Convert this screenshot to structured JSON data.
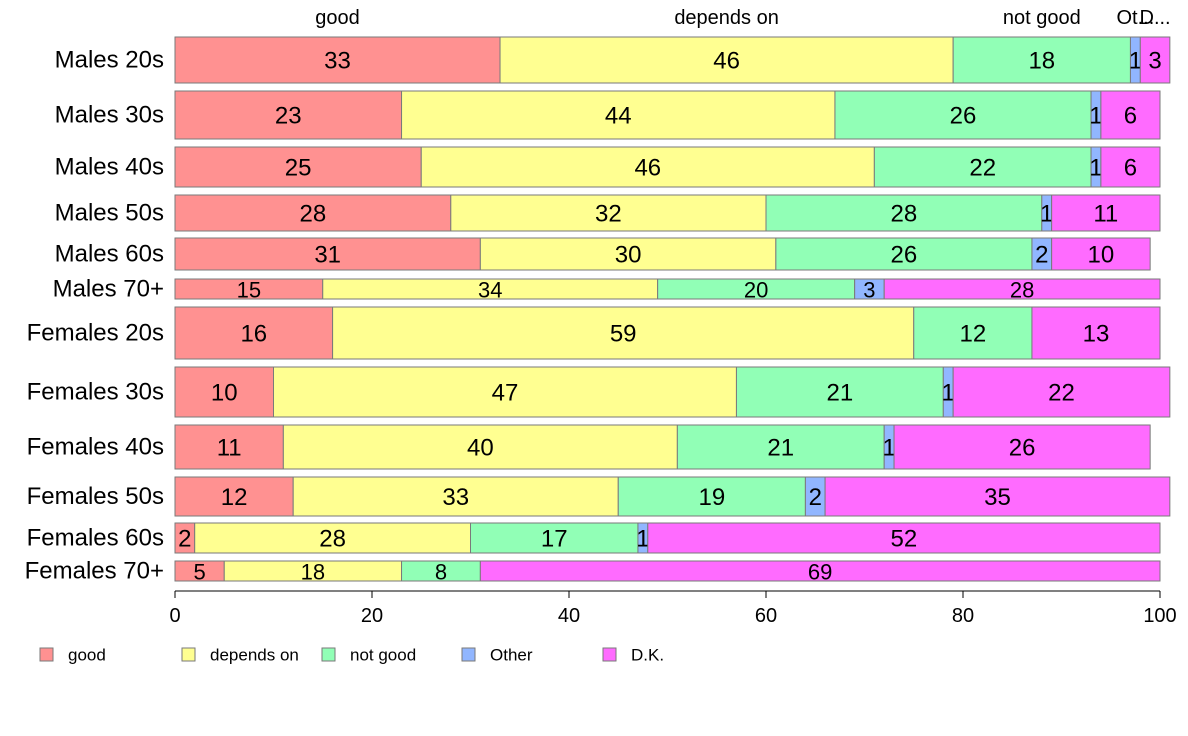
{
  "chart_data": {
    "type": "bar",
    "orientation": "horizontal",
    "stacked": true,
    "categories": [
      "Males 20s",
      "Males 30s",
      "Males 40s",
      "Males 50s",
      "Males 60s",
      "Males 70+",
      "Females 20s",
      "Females 30s",
      "Females 40s",
      "Females 50s",
      "Females 60s",
      "Females 70+"
    ],
    "series": [
      {
        "name": "good",
        "color": "#FF9191",
        "values": [
          33,
          23,
          25,
          28,
          31,
          15,
          16,
          10,
          11,
          12,
          2,
          5
        ]
      },
      {
        "name": "depends on",
        "color": "#FFFF91",
        "values": [
          46,
          44,
          46,
          32,
          30,
          34,
          59,
          47,
          40,
          33,
          28,
          18
        ]
      },
      {
        "name": "not good",
        "color": "#91FFB6",
        "values": [
          18,
          26,
          22,
          28,
          26,
          20,
          12,
          21,
          21,
          19,
          17,
          8
        ]
      },
      {
        "name": "Other",
        "color": "#91B6FF",
        "values": [
          1,
          1,
          1,
          1,
          2,
          3,
          0,
          1,
          1,
          2,
          1,
          0
        ]
      },
      {
        "name": "D.K.",
        "color": "#FF6BFF",
        "values": [
          3,
          6,
          6,
          11,
          10,
          28,
          13,
          22,
          26,
          35,
          52,
          69
        ]
      }
    ],
    "top_labels": [
      "good",
      "depends on",
      "not good",
      "Ot...",
      "D..."
    ],
    "xlim": [
      0,
      100
    ],
    "xticks": [
      "0",
      "20",
      "40",
      "60",
      "80",
      "100"
    ],
    "grid": false,
    "legend": "bottom"
  }
}
